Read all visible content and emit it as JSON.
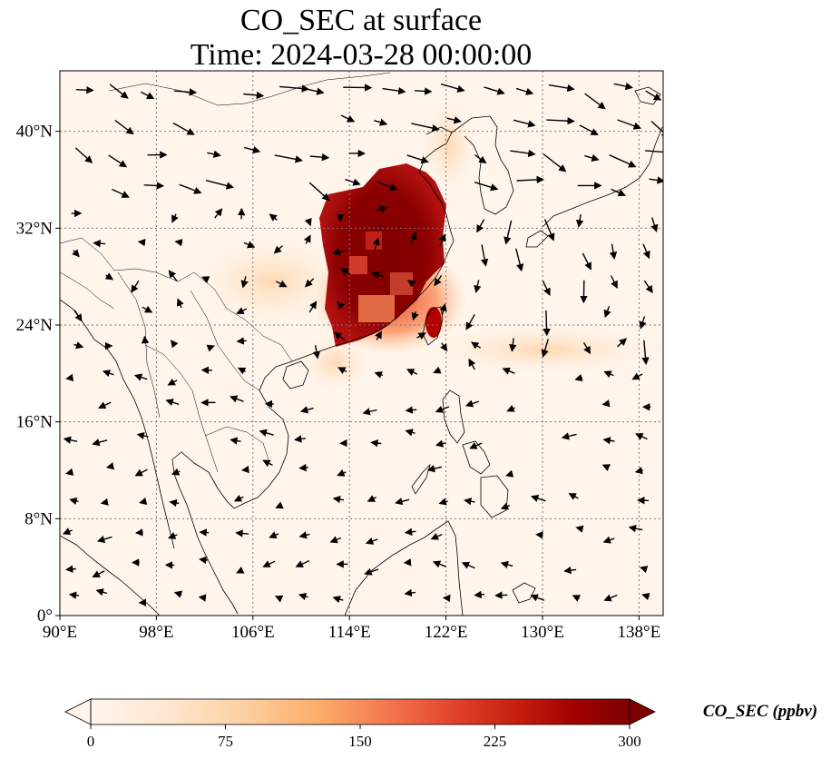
{
  "title": {
    "line1": "CO_SEC at surface",
    "line2": "Time: 2024-03-28 00:00:00"
  },
  "map": {
    "lon_range": [
      90,
      140
    ],
    "lat_range": [
      0,
      45
    ],
    "x_ticks": [
      {
        "value": 90,
        "label": "90°E"
      },
      {
        "value": 98,
        "label": "98°E"
      },
      {
        "value": 106,
        "label": "106°E"
      },
      {
        "value": 114,
        "label": "114°E"
      },
      {
        "value": 122,
        "label": "122°E"
      },
      {
        "value": 130,
        "label": "130°E"
      },
      {
        "value": 138,
        "label": "138°E"
      }
    ],
    "y_ticks": [
      {
        "value": 0,
        "label": "0°"
      },
      {
        "value": 8,
        "label": "8°N"
      },
      {
        "value": 16,
        "label": "16°N"
      },
      {
        "value": 24,
        "label": "24°N"
      },
      {
        "value": 32,
        "label": "32°N"
      },
      {
        "value": 40,
        "label": "40°N"
      }
    ],
    "gridlines": "dotted",
    "background_color": "#fff5eb"
  },
  "colorbar": {
    "label": "CO_SEC (ppbv)",
    "min": 0,
    "max": 300,
    "extend": "both",
    "colormap": "OrRd",
    "ticks": [
      "0",
      "75",
      "150",
      "225",
      "300"
    ],
    "colors": [
      "#fff5eb",
      "#fee6ce",
      "#fdd0a2",
      "#fdae6b",
      "#fd8d3c",
      "#f16913",
      "#d94801",
      "#a50f15",
      "#7f0000"
    ]
  }
}
